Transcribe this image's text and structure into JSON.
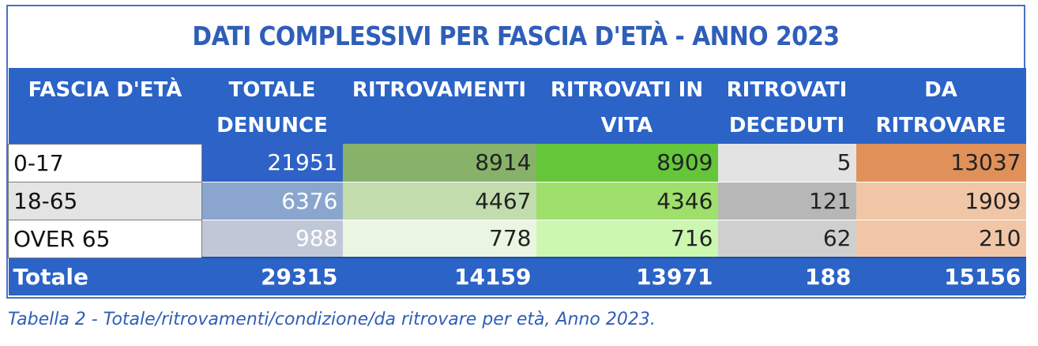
{
  "title": "DATI COMPLESSIVI PER FASCIA D'ETÀ - ANNO 2023",
  "headers": [
    "FASCIA D'ETÀ",
    "TOTALE DENUNCE",
    "RITROVAMENTI",
    "RITROVATI IN VITA",
    "RITROVATI DECEDUTI",
    "DA RITROVARE"
  ],
  "rows": [
    {
      "label": "0-17",
      "cells": [
        "21951",
        "8914",
        "8909",
        "5",
        "13037"
      ]
    },
    {
      "label": "18-65",
      "cells": [
        "6376",
        "4467",
        "4346",
        "121",
        "1909"
      ]
    },
    {
      "label": "OVER 65",
      "cells": [
        "988",
        "778",
        "716",
        "62",
        "210"
      ]
    }
  ],
  "total": {
    "label": "Totale",
    "cells": [
      "29315",
      "14159",
      "13971",
      "188",
      "15156"
    ]
  },
  "caption": "Tabella 2 - Totale/ritrovamenti/condizione/da ritrovare per età, Anno 2023.",
  "colors": {
    "header_blue": "#2b63c6",
    "title_blue": "#2f5eb8",
    "denunce": [
      "#2e62c7",
      "#8aa6cf",
      "#c0c8d8"
    ],
    "ritrovamenti": [
      "#88b26a",
      "#c2dcae",
      "#eaf5e2"
    ],
    "vita": [
      "#66c63a",
      "#9fe06c",
      "#cbf7b0"
    ],
    "deceduti": [
      "#e3e3e3",
      "#b7b7b7",
      "#cfcfcf"
    ],
    "da_ritrovare": [
      "#e0915a",
      "#f1c6a7",
      "#f1c6a7"
    ]
  }
}
